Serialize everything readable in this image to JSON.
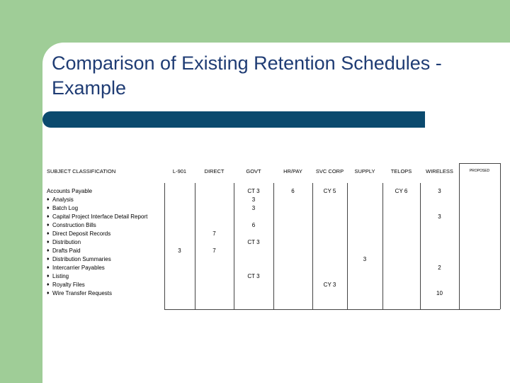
{
  "title": "Comparison of Existing Retention Schedules - Example",
  "table": {
    "headers": [
      "SUBJECT CLASSIFICATION",
      "L-901",
      "DIRECT",
      "GOVT",
      "HR/PAY",
      "SVC CORP",
      "SUPPLY",
      "TELOPS",
      "WIRELESS",
      "PROPOSED"
    ],
    "rows": [
      {
        "label": "Accounts Payable",
        "cells": {
          "3": "CT 3",
          "4": "6",
          "5": "CY 5",
          "7": "CY 6",
          "8": "3"
        }
      },
      {
        "label": "Analysis",
        "cells": {
          "3": "3"
        }
      },
      {
        "label": "Batch Log",
        "cells": {
          "3": "3"
        }
      },
      {
        "label": "Capital Project Interface Detail Report",
        "cells": {
          "8": "3"
        }
      },
      {
        "label": "Construction Bills",
        "cells": {
          "3": "6"
        }
      },
      {
        "label": "Direct Deposit Records",
        "cells": {
          "2": "7"
        }
      },
      {
        "label": "Distribution",
        "cells": {
          "3": "CT 3"
        }
      },
      {
        "label": "Drafts Paid",
        "cells": {
          "1": "3",
          "2": "7"
        }
      },
      {
        "label": "Distribution Summaries",
        "cells": {
          "6": "3"
        }
      },
      {
        "label": "Intercarrier Payables",
        "cells": {
          "8": "2"
        }
      },
      {
        "label": "Listing",
        "cells": {
          "3": "CT 3"
        }
      },
      {
        "label": "Royalty Files",
        "cells": {
          "5": "CY 3"
        }
      },
      {
        "label": "Wire Transfer Requests",
        "cells": {
          "8": "10"
        }
      }
    ]
  }
}
